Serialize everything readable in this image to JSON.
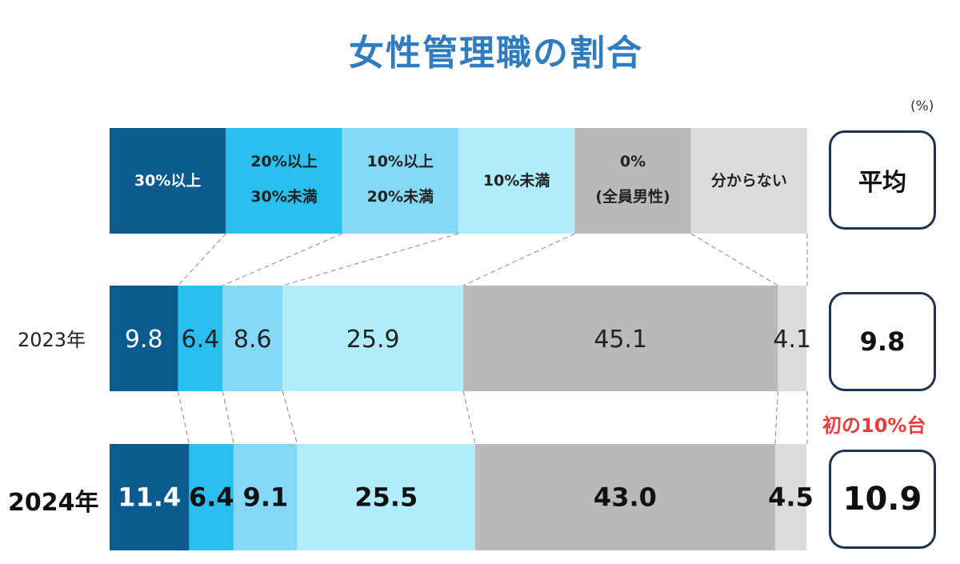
{
  "title": "女性管理職の割合",
  "unit": "(%)",
  "categories": [
    {
      "line1": "30%以上",
      "line2": "",
      "color": "#0b5b8f",
      "text_color": "#ffffff"
    },
    {
      "line1": "20%以上",
      "line2": "30%未満",
      "color": "#29c0f0",
      "text_color": "#222222"
    },
    {
      "line1": "10%以上",
      "line2": "20%未満",
      "color": "#85d8f6",
      "text_color": "#222222"
    },
    {
      "line1": "10%未満",
      "line2": "",
      "color": "#b1ecfb",
      "text_color": "#222222"
    },
    {
      "line1": "0%",
      "line2": "(全員男性)",
      "color": "#b9b9b9",
      "text_color": "#222222"
    },
    {
      "line1": "分からない",
      "line2": "",
      "color": "#dcdcdc",
      "text_color": "#222222"
    }
  ],
  "average_header": "平均",
  "chart_data": {
    "type": "bar",
    "stacked": true,
    "orientation": "horizontal",
    "unit": "%",
    "series": [
      {
        "name": "30%以上",
        "values": [
          9.8,
          11.4
        ]
      },
      {
        "name": "20%以上30%未満",
        "values": [
          6.4,
          6.4
        ]
      },
      {
        "name": "10%以上20%未満",
        "values": [
          8.6,
          9.1
        ]
      },
      {
        "name": "10%未満",
        "values": [
          25.9,
          25.5
        ]
      },
      {
        "name": "0%(全員男性)",
        "values": [
          45.1,
          43.0
        ]
      },
      {
        "name": "分からない",
        "values": [
          4.1,
          4.5
        ]
      }
    ],
    "data_labels": [
      [
        "9.8",
        "6.4",
        "8.6",
        "25.9",
        "45.1",
        "4.1"
      ],
      [
        "11.4",
        "6.4",
        "9.1",
        "25.5",
        "43.0",
        "4.5"
      ]
    ],
    "categories": [
      "2023年",
      "2024年"
    ],
    "averages": [
      "9.8",
      "10.9"
    ]
  },
  "rows": [
    {
      "label": "2023年",
      "average": "9.8"
    },
    {
      "label": "2024年",
      "average": "10.9"
    }
  ],
  "note": "初の10%台"
}
